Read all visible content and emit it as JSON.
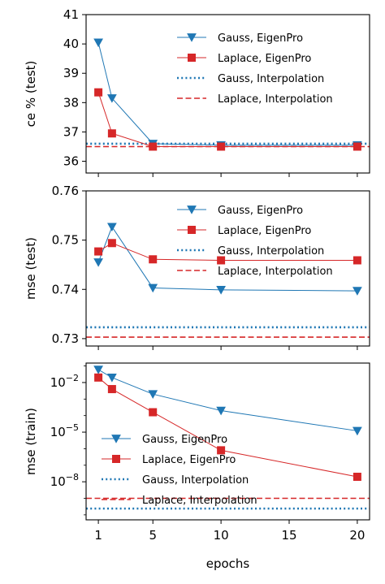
{
  "chart_data": [
    {
      "type": "line",
      "ylabel": "ce % (test)",
      "xlabel": "",
      "xlim": [
        0.1,
        20.9
      ],
      "ylim": [
        35.6,
        41
      ],
      "yscale": "linear",
      "yticks": [
        36,
        37,
        38,
        39,
        40,
        41
      ],
      "ytick_labels": [
        "36",
        "37",
        "38",
        "39",
        "40",
        "41"
      ],
      "x": [
        1,
        2,
        5,
        10,
        20
      ],
      "series": [
        {
          "name": "Gauss, EigenPro",
          "values": [
            40.05,
            38.15,
            36.6,
            36.55,
            36.55
          ],
          "color": "#1f77b4",
          "marker": "triangle-down",
          "style": "solid"
        },
        {
          "name": "Laplace, EigenPro",
          "values": [
            38.35,
            36.95,
            36.5,
            36.5,
            36.5
          ],
          "color": "#d62728",
          "marker": "square",
          "style": "solid"
        },
        {
          "name": "Gauss, Interpolation",
          "hline": 36.6,
          "color": "#1f77b4",
          "style": "dotted"
        },
        {
          "name": "Laplace, Interpolation",
          "hline": 36.5,
          "color": "#d62728",
          "style": "dashed"
        }
      ],
      "legend": "top-right",
      "grid": false
    },
    {
      "type": "line",
      "ylabel": "mse (test)",
      "xlabel": "",
      "xlim": [
        0.1,
        20.9
      ],
      "ylim": [
        0.7285,
        0.76
      ],
      "yscale": "linear",
      "yticks": [
        0.73,
        0.74,
        0.75,
        0.76
      ],
      "ytick_labels": [
        "0.73",
        "0.74",
        "0.75",
        "0.76"
      ],
      "x": [
        1,
        2,
        5,
        10,
        20
      ],
      "series": [
        {
          "name": "Gauss, EigenPro",
          "values": [
            0.7455,
            0.7527,
            0.7403,
            0.7399,
            0.7397
          ],
          "color": "#1f77b4",
          "marker": "triangle-down",
          "style": "solid"
        },
        {
          "name": "Laplace, EigenPro",
          "values": [
            0.7477,
            0.7494,
            0.7461,
            0.7459,
            0.7459
          ],
          "color": "#d62728",
          "marker": "square",
          "style": "solid"
        },
        {
          "name": "Gauss, Interpolation",
          "hline": 0.7323,
          "color": "#1f77b4",
          "style": "dotted"
        },
        {
          "name": "Laplace, Interpolation",
          "hline": 0.7303,
          "color": "#d62728",
          "style": "dashed"
        }
      ],
      "legend": "top-right",
      "grid": false
    },
    {
      "type": "line",
      "ylabel": "mse (train)",
      "xlabel": "epochs",
      "xlim": [
        0.1,
        20.9
      ],
      "ylim": [
        5e-11,
        0.15
      ],
      "yscale": "log",
      "yticks": [
        1e-08,
        1e-05,
        0.01
      ],
      "ytick_labels": [
        "10−8",
        "10−5",
        "10−2"
      ],
      "xticks": [
        1,
        5,
        10,
        15,
        20
      ],
      "xtick_labels": [
        "1",
        "5",
        "10",
        "15",
        "20"
      ],
      "x": [
        1,
        2,
        5,
        10,
        20
      ],
      "series": [
        {
          "name": "Gauss, EigenPro",
          "values": [
            0.06,
            0.02,
            0.002,
            0.0002,
            1.2e-05
          ],
          "color": "#1f77b4",
          "marker": "triangle-down",
          "style": "solid"
        },
        {
          "name": "Laplace, EigenPro",
          "values": [
            0.02,
            0.004,
            0.00016,
            8e-07,
            2e-08
          ],
          "color": "#d62728",
          "marker": "square",
          "style": "solid"
        },
        {
          "name": "Gauss, Interpolation",
          "hline": 2.4e-10,
          "color": "#1f77b4",
          "style": "dotted"
        },
        {
          "name": "Laplace, Interpolation",
          "hline": 1e-09,
          "color": "#d62728",
          "style": "dashed"
        }
      ],
      "legend": "bottom-left",
      "grid": false
    }
  ]
}
